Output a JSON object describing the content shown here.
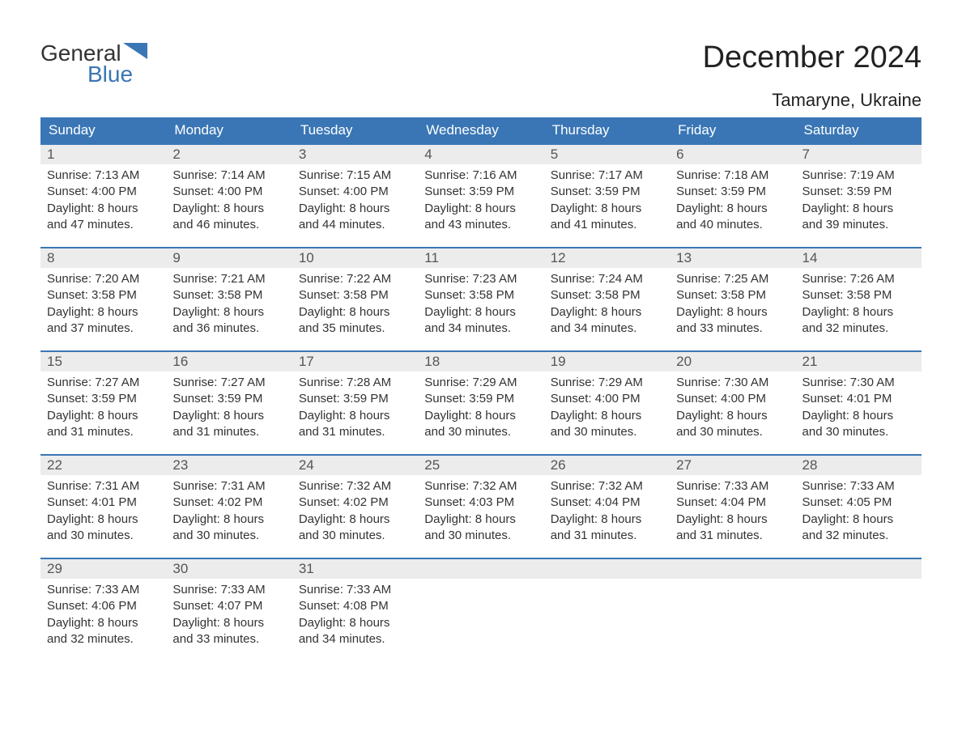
{
  "logo": {
    "text_top": "General",
    "text_bottom": "Blue",
    "accent_color": "#3a76b5",
    "text_color": "#333333"
  },
  "title": "December 2024",
  "location": "Tamaryne, Ukraine",
  "colors": {
    "header_bg": "#3a76b5",
    "header_text": "#ffffff",
    "daynum_bg": "#ececec",
    "daynum_border": "#3a76b5",
    "body_text": "#333333"
  },
  "weekdays": [
    "Sunday",
    "Monday",
    "Tuesday",
    "Wednesday",
    "Thursday",
    "Friday",
    "Saturday"
  ],
  "labels": {
    "sunrise": "Sunrise:",
    "sunset": "Sunset:",
    "daylight": "Daylight:"
  },
  "days": [
    {
      "n": 1,
      "sunrise": "7:13 AM",
      "sunset": "4:00 PM",
      "daylight": "8 hours and 47 minutes."
    },
    {
      "n": 2,
      "sunrise": "7:14 AM",
      "sunset": "4:00 PM",
      "daylight": "8 hours and 46 minutes."
    },
    {
      "n": 3,
      "sunrise": "7:15 AM",
      "sunset": "4:00 PM",
      "daylight": "8 hours and 44 minutes."
    },
    {
      "n": 4,
      "sunrise": "7:16 AM",
      "sunset": "3:59 PM",
      "daylight": "8 hours and 43 minutes."
    },
    {
      "n": 5,
      "sunrise": "7:17 AM",
      "sunset": "3:59 PM",
      "daylight": "8 hours and 41 minutes."
    },
    {
      "n": 6,
      "sunrise": "7:18 AM",
      "sunset": "3:59 PM",
      "daylight": "8 hours and 40 minutes."
    },
    {
      "n": 7,
      "sunrise": "7:19 AM",
      "sunset": "3:59 PM",
      "daylight": "8 hours and 39 minutes."
    },
    {
      "n": 8,
      "sunrise": "7:20 AM",
      "sunset": "3:58 PM",
      "daylight": "8 hours and 37 minutes."
    },
    {
      "n": 9,
      "sunrise": "7:21 AM",
      "sunset": "3:58 PM",
      "daylight": "8 hours and 36 minutes."
    },
    {
      "n": 10,
      "sunrise": "7:22 AM",
      "sunset": "3:58 PM",
      "daylight": "8 hours and 35 minutes."
    },
    {
      "n": 11,
      "sunrise": "7:23 AM",
      "sunset": "3:58 PM",
      "daylight": "8 hours and 34 minutes."
    },
    {
      "n": 12,
      "sunrise": "7:24 AM",
      "sunset": "3:58 PM",
      "daylight": "8 hours and 34 minutes."
    },
    {
      "n": 13,
      "sunrise": "7:25 AM",
      "sunset": "3:58 PM",
      "daylight": "8 hours and 33 minutes."
    },
    {
      "n": 14,
      "sunrise": "7:26 AM",
      "sunset": "3:58 PM",
      "daylight": "8 hours and 32 minutes."
    },
    {
      "n": 15,
      "sunrise": "7:27 AM",
      "sunset": "3:59 PM",
      "daylight": "8 hours and 31 minutes."
    },
    {
      "n": 16,
      "sunrise": "7:27 AM",
      "sunset": "3:59 PM",
      "daylight": "8 hours and 31 minutes."
    },
    {
      "n": 17,
      "sunrise": "7:28 AM",
      "sunset": "3:59 PM",
      "daylight": "8 hours and 31 minutes."
    },
    {
      "n": 18,
      "sunrise": "7:29 AM",
      "sunset": "3:59 PM",
      "daylight": "8 hours and 30 minutes."
    },
    {
      "n": 19,
      "sunrise": "7:29 AM",
      "sunset": "4:00 PM",
      "daylight": "8 hours and 30 minutes."
    },
    {
      "n": 20,
      "sunrise": "7:30 AM",
      "sunset": "4:00 PM",
      "daylight": "8 hours and 30 minutes."
    },
    {
      "n": 21,
      "sunrise": "7:30 AM",
      "sunset": "4:01 PM",
      "daylight": "8 hours and 30 minutes."
    },
    {
      "n": 22,
      "sunrise": "7:31 AM",
      "sunset": "4:01 PM",
      "daylight": "8 hours and 30 minutes."
    },
    {
      "n": 23,
      "sunrise": "7:31 AM",
      "sunset": "4:02 PM",
      "daylight": "8 hours and 30 minutes."
    },
    {
      "n": 24,
      "sunrise": "7:32 AM",
      "sunset": "4:02 PM",
      "daylight": "8 hours and 30 minutes."
    },
    {
      "n": 25,
      "sunrise": "7:32 AM",
      "sunset": "4:03 PM",
      "daylight": "8 hours and 30 minutes."
    },
    {
      "n": 26,
      "sunrise": "7:32 AM",
      "sunset": "4:04 PM",
      "daylight": "8 hours and 31 minutes."
    },
    {
      "n": 27,
      "sunrise": "7:33 AM",
      "sunset": "4:04 PM",
      "daylight": "8 hours and 31 minutes."
    },
    {
      "n": 28,
      "sunrise": "7:33 AM",
      "sunset": "4:05 PM",
      "daylight": "8 hours and 32 minutes."
    },
    {
      "n": 29,
      "sunrise": "7:33 AM",
      "sunset": "4:06 PM",
      "daylight": "8 hours and 32 minutes."
    },
    {
      "n": 30,
      "sunrise": "7:33 AM",
      "sunset": "4:07 PM",
      "daylight": "8 hours and 33 minutes."
    },
    {
      "n": 31,
      "sunrise": "7:33 AM",
      "sunset": "4:08 PM",
      "daylight": "8 hours and 34 minutes."
    }
  ],
  "first_weekday_index": 0,
  "weeks": 5
}
